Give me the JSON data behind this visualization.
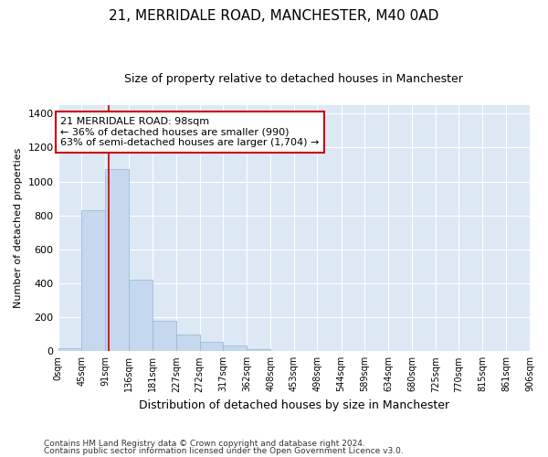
{
  "title1": "21, MERRIDALE ROAD, MANCHESTER, M40 0AD",
  "title2": "Size of property relative to detached houses in Manchester",
  "xlabel": "Distribution of detached houses by size in Manchester",
  "ylabel": "Number of detached properties",
  "bin_edges": [
    0,
    45,
    91,
    136,
    181,
    227,
    272,
    317,
    362,
    408,
    453,
    498,
    544,
    589,
    634,
    680,
    725,
    770,
    815,
    861,
    906
  ],
  "bar_heights": [
    20,
    830,
    1075,
    420,
    180,
    100,
    58,
    35,
    12,
    0,
    0,
    0,
    0,
    0,
    0,
    0,
    0,
    0,
    0,
    0
  ],
  "bar_color": "#c5d8ee",
  "bar_edge_color": "#9bbcda",
  "property_size": 98,
  "vline_color": "#cc0000",
  "annotation_line1": "21 MERRIDALE ROAD: 98sqm",
  "annotation_line2": "← 36% of detached houses are smaller (990)",
  "annotation_line3": "63% of semi-detached houses are larger (1,704) →",
  "annotation_box_color": "#ffffff",
  "annotation_box_edge_color": "#cc0000",
  "ylim": [
    0,
    1450
  ],
  "yticks": [
    0,
    200,
    400,
    600,
    800,
    1000,
    1200,
    1400
  ],
  "background_color": "#dde8f5",
  "grid_color": "#ffffff",
  "footer1": "Contains HM Land Registry data © Crown copyright and database right 2024.",
  "footer2": "Contains public sector information licensed under the Open Government Licence v3.0."
}
